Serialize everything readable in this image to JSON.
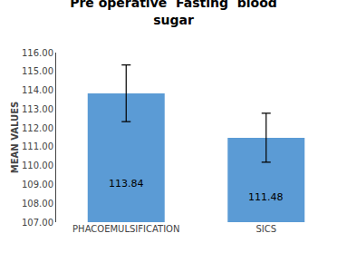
{
  "chart_data": {
    "type": "bar",
    "title": "Pre operative  Fasting  blood\nsugar",
    "categories": [
      "PHACOEMULSIFICATION",
      "SICS"
    ],
    "values": [
      113.84,
      111.48
    ],
    "errors": [
      1.5,
      1.3
    ],
    "color": "#5B9BD5",
    "ylabel": "MEAN VALUES",
    "ylim": [
      107.0,
      116.0
    ],
    "yticks": [
      {
        "value": 107,
        "label": "107.00"
      },
      {
        "value": 108,
        "label": "108.00"
      },
      {
        "value": 109,
        "label": "109.00"
      },
      {
        "value": 110,
        "label": "110.00"
      },
      {
        "value": 111,
        "label": "111.00"
      },
      {
        "value": 112,
        "label": "112.00"
      },
      {
        "value": 113,
        "label": "113.00"
      },
      {
        "value": 114,
        "label": "114.00"
      },
      {
        "value": 115,
        "label": "115.00"
      },
      {
        "value": 116,
        "label": "116.00"
      }
    ],
    "data_labels": true,
    "grid": false
  }
}
